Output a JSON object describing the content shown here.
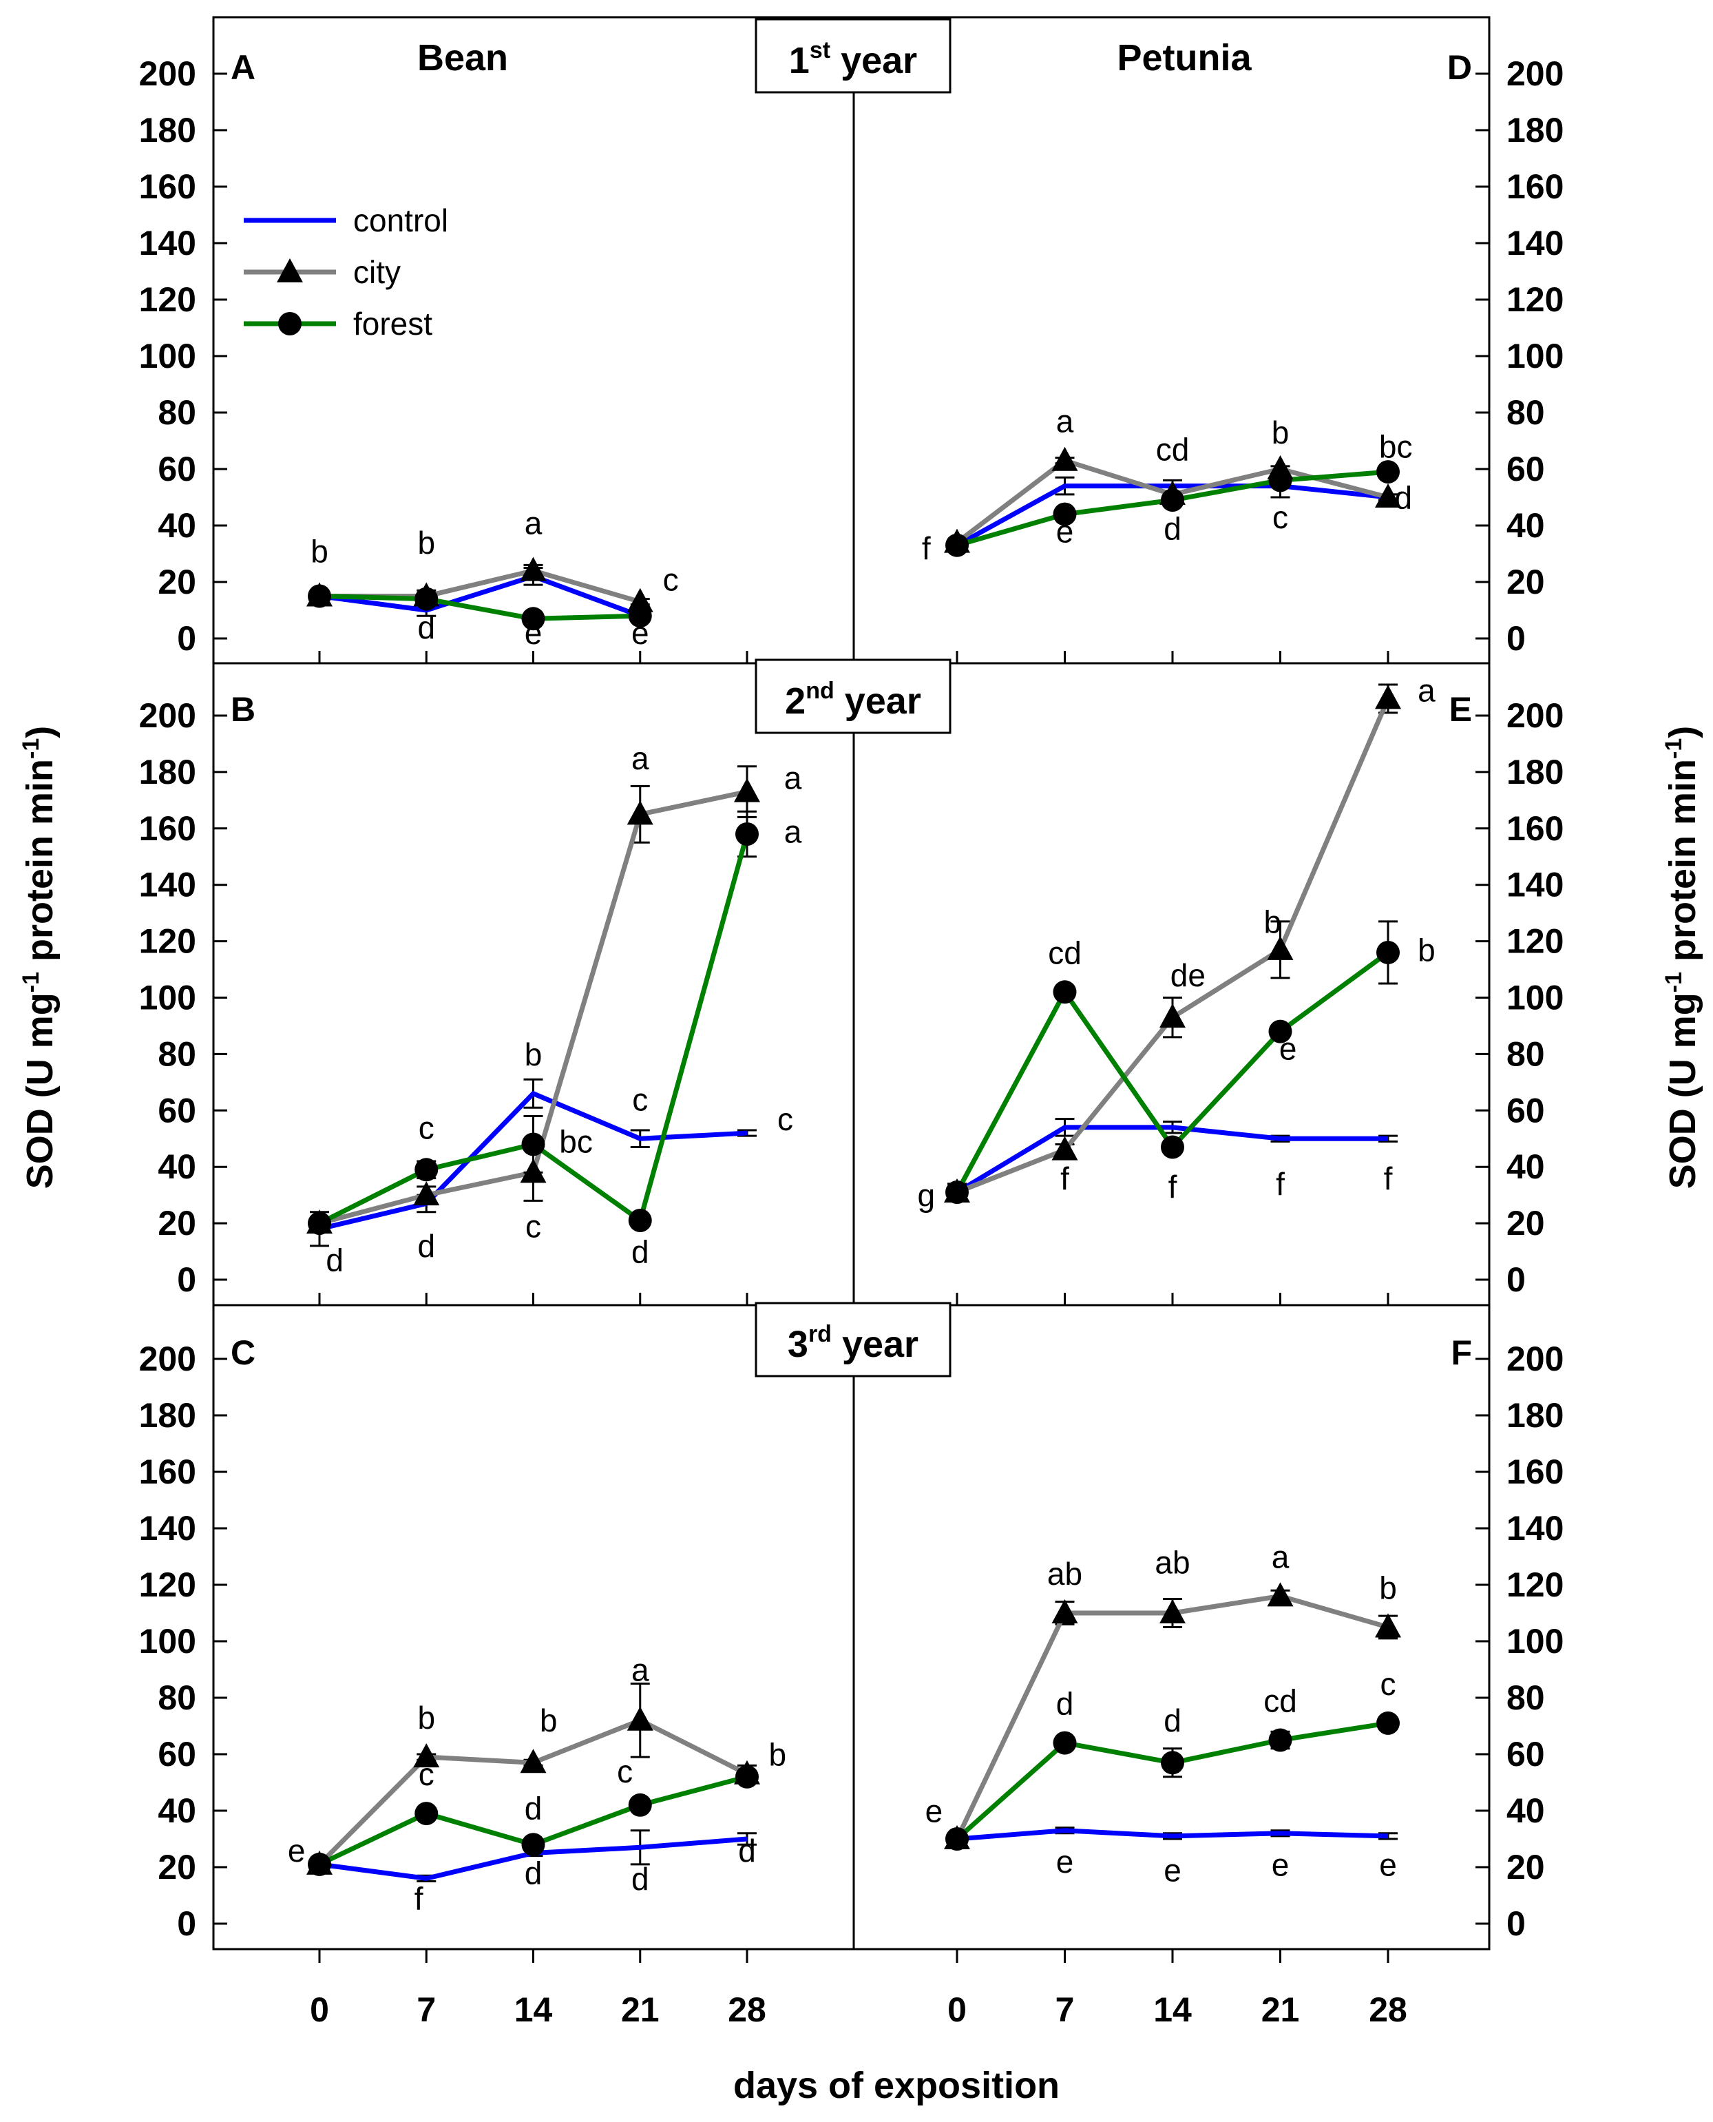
{
  "colors": {
    "control": "#0000ff",
    "city": "#808080",
    "forest": "#008000",
    "axis": "#000000",
    "marker": "#000000"
  },
  "figure": {
    "ylabel_main": "SOD (U mg",
    "ylabel_sup1": "-1",
    "ylabel_mid": " protein min",
    "ylabel_sup2": "-1",
    "ylabel_end": ")",
    "xlabel": "days of exposition",
    "header_left": "Bean",
    "header_right": "Petunia"
  },
  "legend": [
    {
      "key": "control",
      "label": "control",
      "marker": "none"
    },
    {
      "key": "city",
      "label": "city",
      "marker": "triangle"
    },
    {
      "key": "forest",
      "label": "forest",
      "marker": "circle"
    }
  ],
  "years": [
    {
      "num": "1",
      "sup": "st",
      "word": "year"
    },
    {
      "num": "2",
      "sup": "nd",
      "word": "year"
    },
    {
      "num": "3",
      "sup": "rd",
      "word": "year"
    }
  ],
  "chart_data": [
    {
      "id": "A",
      "plant": "Bean",
      "year": 1,
      "type": "line",
      "x": [
        0,
        7,
        14,
        21
      ],
      "xticks": [
        "0",
        "7",
        "14",
        "21",
        "28"
      ],
      "ylim": [
        0,
        210
      ],
      "yticks": [
        "0",
        "20",
        "40",
        "60",
        "80",
        "100",
        "120",
        "140",
        "160",
        "180",
        "200"
      ],
      "series": [
        {
          "name": "control",
          "values": [
            15,
            10,
            22,
            8
          ],
          "errors": [
            0,
            2,
            3,
            1
          ]
        },
        {
          "name": "city",
          "values": [
            15,
            15,
            24,
            13
          ],
          "errors": [
            0,
            2,
            2,
            1
          ]
        },
        {
          "name": "forest",
          "values": [
            15,
            14,
            7,
            8
          ],
          "errors": [
            0,
            1,
            1,
            1
          ]
        }
      ],
      "annotations": [
        {
          "text": "b",
          "x": 0,
          "y": 27
        },
        {
          "text": "b",
          "x": 7,
          "y": 30
        },
        {
          "text": "d",
          "x": 7,
          "y": 0
        },
        {
          "text": "a",
          "x": 14,
          "y": 37
        },
        {
          "text": "e",
          "x": 14,
          "y": -2
        },
        {
          "text": "c",
          "x": 23,
          "y": 17
        },
        {
          "text": "e",
          "x": 21,
          "y": -2
        }
      ]
    },
    {
      "id": "D",
      "plant": "Petunia",
      "year": 1,
      "type": "line",
      "x": [
        0,
        7,
        14,
        21,
        28
      ],
      "xticks": [
        "0",
        "7",
        "14",
        "21",
        "28"
      ],
      "ylim": [
        0,
        210
      ],
      "yticks": [
        "0",
        "20",
        "40",
        "60",
        "80",
        "100",
        "120",
        "140",
        "160",
        "180",
        "200"
      ],
      "series": [
        {
          "name": "control",
          "values": [
            33,
            54,
            54,
            54,
            50
          ],
          "errors": [
            1,
            3,
            2,
            4,
            1
          ]
        },
        {
          "name": "city",
          "values": [
            34,
            63,
            51,
            60,
            50
          ],
          "errors": [
            1,
            1,
            1,
            1,
            1
          ]
        },
        {
          "name": "forest",
          "values": [
            33,
            44,
            49,
            56,
            59
          ],
          "errors": [
            1,
            1,
            1,
            1,
            1
          ]
        }
      ],
      "annotations": [
        {
          "text": "f",
          "x": -2,
          "y": 28
        },
        {
          "text": "a",
          "x": 7,
          "y": 73
        },
        {
          "text": "e",
          "x": 7,
          "y": 34
        },
        {
          "text": "cd",
          "x": 14,
          "y": 63
        },
        {
          "text": "d",
          "x": 14,
          "y": 35
        },
        {
          "text": "b",
          "x": 21,
          "y": 69
        },
        {
          "text": "c",
          "x": 21,
          "y": 39
        },
        {
          "text": "bc",
          "x": 28.5,
          "y": 64
        },
        {
          "text": "d",
          "x": 29,
          "y": 46
        }
      ]
    },
    {
      "id": "B",
      "plant": "Bean",
      "year": 2,
      "type": "line",
      "x": [
        0,
        7,
        14,
        21,
        28
      ],
      "xticks": [
        "0",
        "7",
        "14",
        "21",
        "28"
      ],
      "ylim": [
        0,
        210
      ],
      "yticks": [
        "0",
        "20",
        "40",
        "60",
        "80",
        "100",
        "120",
        "140",
        "160",
        "180",
        "200"
      ],
      "series": [
        {
          "name": "control",
          "values": [
            18,
            27,
            66,
            50,
            52
          ],
          "errors": [
            6,
            3,
            5,
            3,
            1
          ]
        },
        {
          "name": "city",
          "values": [
            20,
            30,
            38,
            165,
            173
          ],
          "errors": [
            1,
            3,
            10,
            10,
            9
          ]
        },
        {
          "name": "forest",
          "values": [
            20,
            39,
            48,
            21,
            158
          ],
          "errors": [
            2,
            3,
            10,
            1,
            8
          ]
        }
      ],
      "annotations": [
        {
          "text": "d",
          "x": 1,
          "y": 3
        },
        {
          "text": "c",
          "x": 7,
          "y": 50
        },
        {
          "text": "d",
          "x": 7,
          "y": 8
        },
        {
          "text": "b",
          "x": 14,
          "y": 76
        },
        {
          "text": "bc",
          "x": 16.8,
          "y": 45
        },
        {
          "text": "c",
          "x": 14,
          "y": 15
        },
        {
          "text": "c",
          "x": 21,
          "y": 60
        },
        {
          "text": "d",
          "x": 21,
          "y": 6
        },
        {
          "text": "a",
          "x": 21,
          "y": 181
        },
        {
          "text": "c",
          "x": 30.5,
          "y": 53
        },
        {
          "text": "a",
          "x": 31,
          "y": 174
        },
        {
          "text": "a",
          "x": 31,
          "y": 155
        }
      ]
    },
    {
      "id": "E",
      "plant": "Petunia",
      "year": 2,
      "type": "line",
      "x": [
        0,
        7,
        14,
        21,
        28
      ],
      "xticks": [
        "0",
        "7",
        "14",
        "21",
        "28"
      ],
      "ylim": [
        0,
        210
      ],
      "yticks": [
        "0",
        "20",
        "40",
        "60",
        "80",
        "100",
        "120",
        "140",
        "160",
        "180",
        "200"
      ],
      "series": [
        {
          "name": "control",
          "values": [
            31,
            54,
            54,
            50,
            50
          ],
          "errors": [
            1,
            3,
            2,
            1,
            1
          ]
        },
        {
          "name": "city",
          "values": [
            31,
            46,
            93,
            117,
            206
          ],
          "errors": [
            3,
            2,
            7,
            10,
            5
          ]
        },
        {
          "name": "forest",
          "values": [
            31,
            102,
            47,
            88,
            116
          ],
          "errors": [
            1,
            1,
            1,
            1,
            11
          ]
        }
      ],
      "annotations": [
        {
          "text": "g",
          "x": -2,
          "y": 26
        },
        {
          "text": "cd",
          "x": 7,
          "y": 112
        },
        {
          "text": "f",
          "x": 7,
          "y": 32
        },
        {
          "text": "de",
          "x": 15,
          "y": 104
        },
        {
          "text": "f",
          "x": 14,
          "y": 29
        },
        {
          "text": "b",
          "x": 20.5,
          "y": 123
        },
        {
          "text": "e",
          "x": 21.5,
          "y": 78
        },
        {
          "text": "f",
          "x": 21,
          "y": 30
        },
        {
          "text": "a",
          "x": 30.5,
          "y": 205
        },
        {
          "text": "b",
          "x": 30.5,
          "y": 113
        },
        {
          "text": "f",
          "x": 28,
          "y": 32
        }
      ]
    },
    {
      "id": "C",
      "plant": "Bean",
      "year": 3,
      "type": "line",
      "x": [
        0,
        7,
        14,
        21,
        28
      ],
      "xticks": [
        "0",
        "7",
        "14",
        "21",
        "28"
      ],
      "ylim": [
        0,
        210
      ],
      "yticks": [
        "0",
        "20",
        "40",
        "60",
        "80",
        "100",
        "120",
        "140",
        "160",
        "180",
        "200"
      ],
      "series": [
        {
          "name": "control",
          "values": [
            21,
            16,
            25,
            27,
            30
          ],
          "errors": [
            1,
            1,
            1,
            6,
            2
          ]
        },
        {
          "name": "city",
          "values": [
            21,
            59,
            57,
            72,
            53
          ],
          "errors": [
            1,
            1,
            1,
            13,
            3
          ]
        },
        {
          "name": "forest",
          "values": [
            21,
            39,
            28,
            42,
            52
          ],
          "errors": [
            1,
            1,
            1,
            1,
            1
          ]
        }
      ],
      "annotations": [
        {
          "text": "e",
          "x": -1.5,
          "y": 22
        },
        {
          "text": "b",
          "x": 7,
          "y": 69
        },
        {
          "text": "c",
          "x": 7,
          "y": 49
        },
        {
          "text": "f",
          "x": 6.5,
          "y": 5
        },
        {
          "text": "b",
          "x": 15,
          "y": 68
        },
        {
          "text": "d",
          "x": 14,
          "y": 37
        },
        {
          "text": "d",
          "x": 14,
          "y": 14
        },
        {
          "text": "a",
          "x": 21,
          "y": 86
        },
        {
          "text": "c",
          "x": 20,
          "y": 50
        },
        {
          "text": "d",
          "x": 21,
          "y": 12
        },
        {
          "text": "b",
          "x": 30,
          "y": 56
        },
        {
          "text": "d",
          "x": 28,
          "y": 22
        }
      ]
    },
    {
      "id": "F",
      "plant": "Petunia",
      "year": 3,
      "type": "line",
      "x": [
        0,
        7,
        14,
        21,
        28
      ],
      "xticks": [
        "0",
        "7",
        "14",
        "21",
        "28"
      ],
      "ylim": [
        0,
        210
      ],
      "yticks": [
        "0",
        "20",
        "40",
        "60",
        "80",
        "100",
        "120",
        "140",
        "160",
        "180",
        "200"
      ],
      "series": [
        {
          "name": "control",
          "values": [
            30,
            33,
            31,
            32,
            31
          ],
          "errors": [
            1,
            1,
            1,
            1,
            1
          ]
        },
        {
          "name": "city",
          "values": [
            30,
            110,
            110,
            116,
            105
          ],
          "errors": [
            1,
            4,
            5,
            2,
            4
          ]
        },
        {
          "name": "forest",
          "values": [
            30,
            64,
            57,
            65,
            71
          ],
          "errors": [
            1,
            2,
            5,
            3,
            2
          ]
        }
      ],
      "annotations": [
        {
          "text": "e",
          "x": -1.5,
          "y": 36
        },
        {
          "text": "ab",
          "x": 7,
          "y": 120
        },
        {
          "text": "d",
          "x": 7,
          "y": 74
        },
        {
          "text": "e",
          "x": 7,
          "y": 18
        },
        {
          "text": "ab",
          "x": 14,
          "y": 124
        },
        {
          "text": "d",
          "x": 14,
          "y": 68
        },
        {
          "text": "e",
          "x": 14,
          "y": 15
        },
        {
          "text": "a",
          "x": 21,
          "y": 126
        },
        {
          "text": "cd",
          "x": 21,
          "y": 75
        },
        {
          "text": "e",
          "x": 21,
          "y": 17
        },
        {
          "text": "b",
          "x": 28,
          "y": 115
        },
        {
          "text": "c",
          "x": 28,
          "y": 81
        },
        {
          "text": "e",
          "x": 28,
          "y": 17
        }
      ]
    }
  ]
}
